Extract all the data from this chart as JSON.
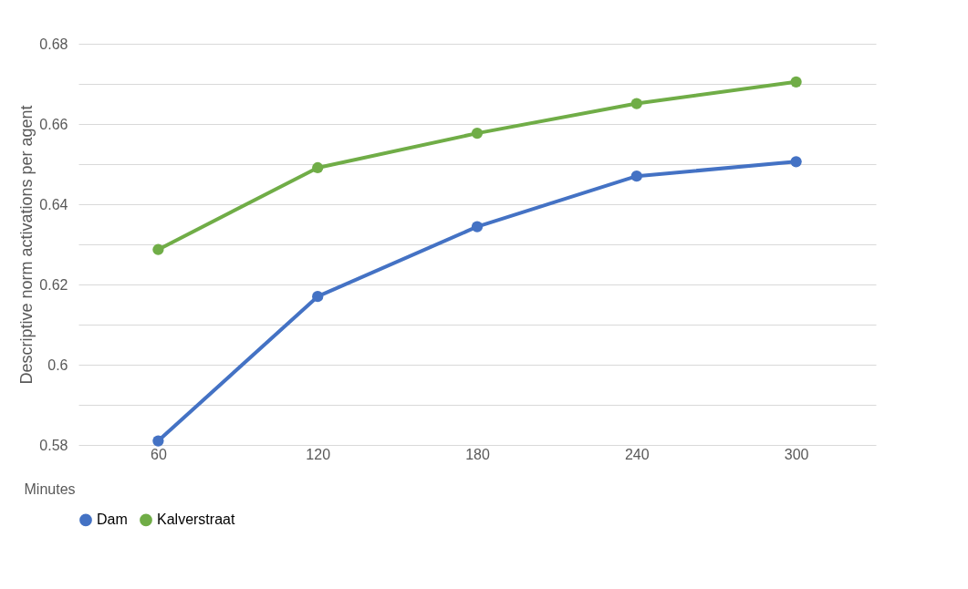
{
  "chart_data": {
    "type": "line",
    "xlabel": "Minutes",
    "ylabel": "Descriptive norm activations per agent",
    "categories": [
      "60",
      "120",
      "180",
      "240",
      "300"
    ],
    "series": [
      {
        "name": "Dam",
        "color": "#4472c4",
        "values": [
          0.581,
          0.617,
          0.6344,
          0.647,
          0.6506
        ]
      },
      {
        "name": "Kalverstraat",
        "color": "#70ad47",
        "values": [
          0.6287,
          0.6491,
          0.6577,
          0.6651,
          0.6705
        ]
      }
    ],
    "ylim": [
      0.58,
      0.68
    ],
    "yticks": [
      0.58,
      {
        "value": 0.59,
        "label": null
      },
      0.6,
      {
        "value": 0.61,
        "label": null
      },
      0.62,
      {
        "value": 0.63,
        "label": null
      },
      0.64,
      {
        "value": 0.65,
        "label": null
      },
      0.66,
      {
        "value": 0.67,
        "label": null
      },
      0.68
    ],
    "grid": "y",
    "legend": "bottom",
    "marker": "circle",
    "line_style": "solid"
  }
}
